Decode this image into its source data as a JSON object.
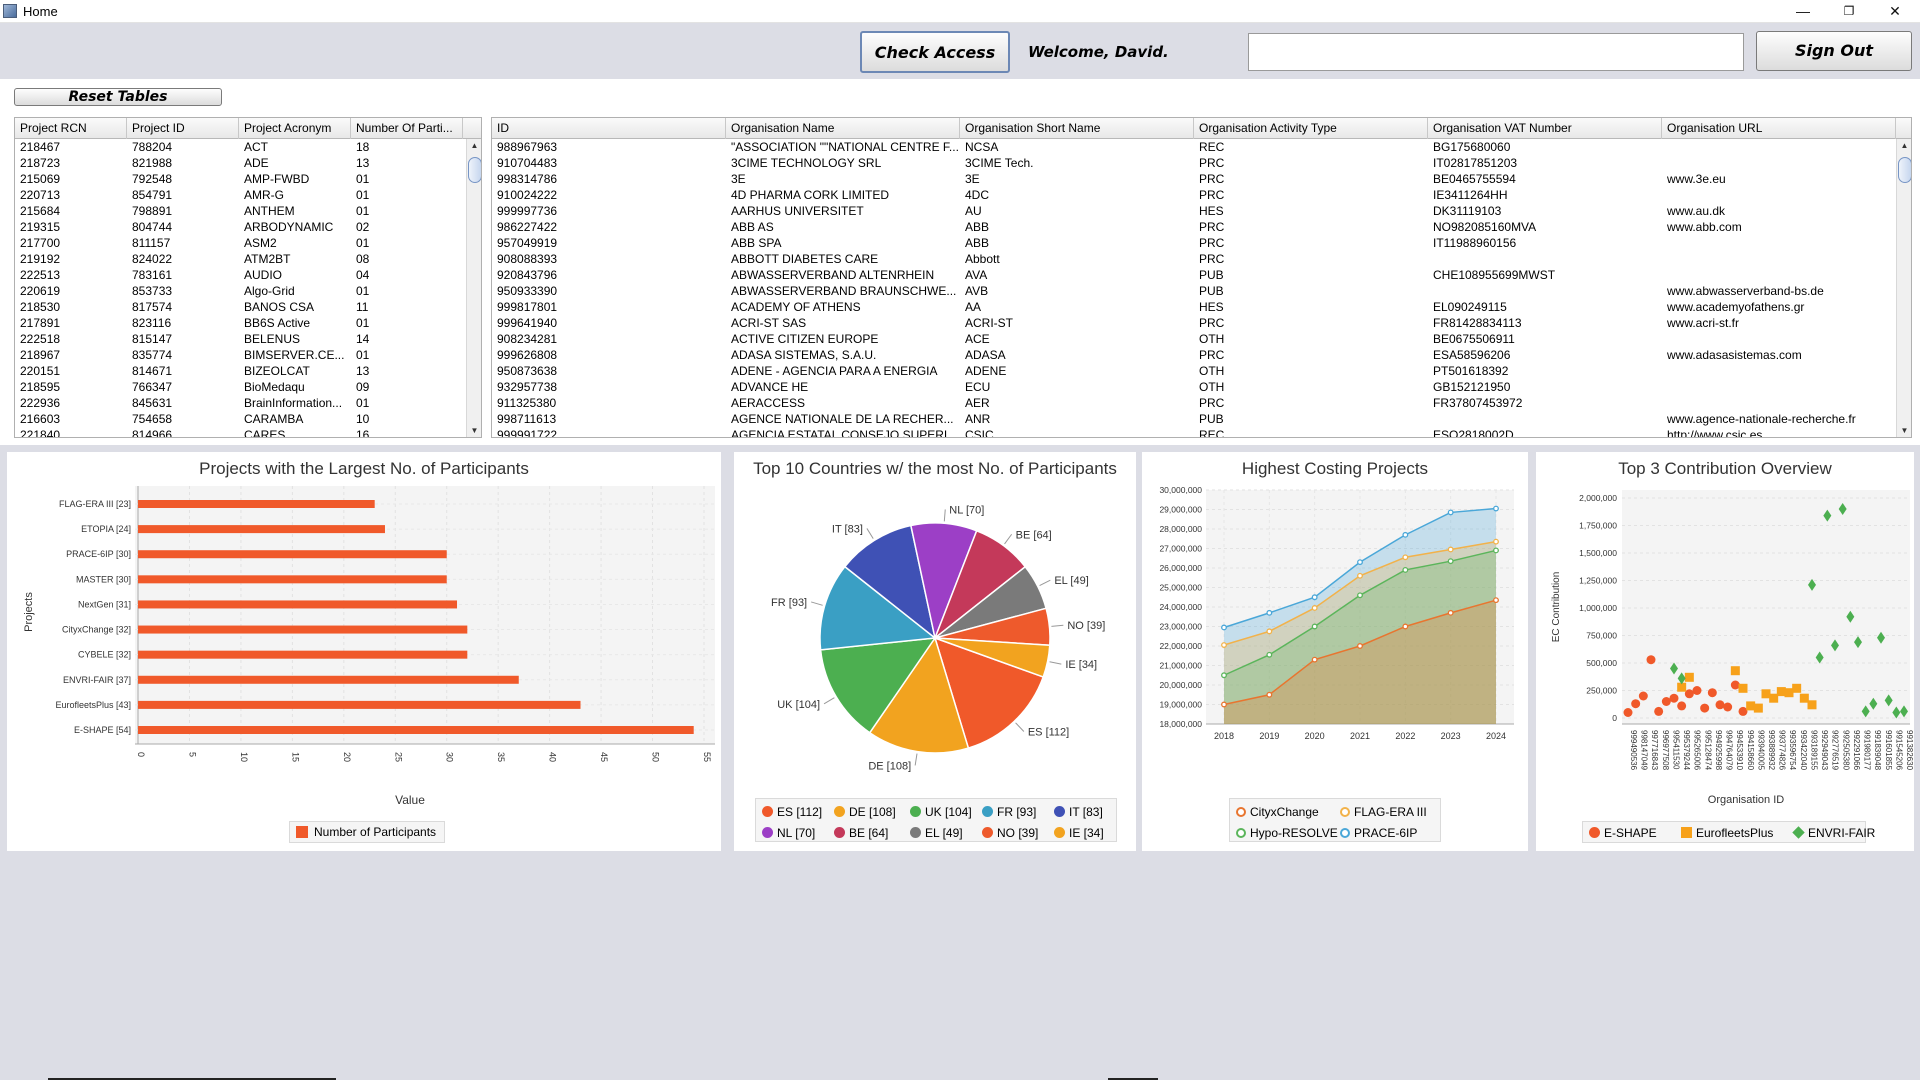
{
  "window": {
    "title": "Home",
    "minimize": "—",
    "restore": "❐",
    "close": "✕"
  },
  "toolbar": {
    "check_access": "Check Access",
    "welcome": "Welcome, David.",
    "search_value": "",
    "sign_out": "Sign Out"
  },
  "reset_tables": "Reset Tables",
  "projects_table": {
    "columns": [
      "Project RCN",
      "Project ID",
      "Project Acronym",
      "Number Of Parti..."
    ],
    "rows": [
      [
        "218467",
        "788204",
        "ACT",
        "18"
      ],
      [
        "218723",
        "821988",
        "ADE",
        "13"
      ],
      [
        "215069",
        "792548",
        "AMP-FWBD",
        "01"
      ],
      [
        "220713",
        "854791",
        "AMR-G",
        "01"
      ],
      [
        "215684",
        "798891",
        "ANTHEM",
        "01"
      ],
      [
        "219315",
        "804744",
        "ARBODYNAMIC",
        "02"
      ],
      [
        "217700",
        "811157",
        "ASM2",
        "01"
      ],
      [
        "219192",
        "824022",
        "ATM2BT",
        "08"
      ],
      [
        "222513",
        "783161",
        "AUDIO",
        "04"
      ],
      [
        "220619",
        "853733",
        "Algo-Grid",
        "01"
      ],
      [
        "218530",
        "817574",
        "BANOS CSA",
        "11"
      ],
      [
        "217891",
        "823116",
        "BB6S Active",
        "01"
      ],
      [
        "222518",
        "815147",
        "BELENUS",
        "14"
      ],
      [
        "218967",
        "835774",
        "BIMSERVER.CE...",
        "01"
      ],
      [
        "220151",
        "814671",
        "BIZEOLCAT",
        "13"
      ],
      [
        "218595",
        "766347",
        "BioMedaqu",
        "09"
      ],
      [
        "222936",
        "845631",
        "BrainInformation...",
        "01"
      ],
      [
        "216603",
        "754658",
        "CARAMBA",
        "10"
      ],
      [
        "221840",
        "814966",
        "CARES",
        "16"
      ]
    ]
  },
  "org_table": {
    "columns": [
      "ID",
      "Organisation Name",
      "Organisation Short Name",
      "Organisation Activity Type",
      "Organisation VAT Number",
      "Organisation URL"
    ],
    "rows": [
      [
        "988967963",
        "\"ASSOCIATION \"\"NATIONAL CENTRE F...",
        "NCSA",
        "REC",
        "BG175680060",
        ""
      ],
      [
        "910704483",
        "3CIME TECHNOLOGY SRL",
        "3CIME Tech.",
        "PRC",
        "IT02817851203",
        ""
      ],
      [
        "998314786",
        "3E",
        "3E",
        "PRC",
        "BE0465755594",
        "www.3e.eu"
      ],
      [
        "910024222",
        "4D PHARMA CORK LIMITED",
        "4DC",
        "PRC",
        "IE3411264HH",
        ""
      ],
      [
        "999997736",
        "AARHUS UNIVERSITET",
        "AU",
        "HES",
        "DK31119103",
        "www.au.dk"
      ],
      [
        "986227422",
        "ABB AS",
        "ABB",
        "PRC",
        "NO982085160MVA",
        "www.abb.com"
      ],
      [
        "957049919",
        "ABB SPA",
        "ABB",
        "PRC",
        "IT11988960156",
        ""
      ],
      [
        "908088393",
        "ABBOTT DIABETES CARE",
        "Abbott",
        "PRC",
        "",
        ""
      ],
      [
        "920843796",
        "ABWASSERVERBAND ALTENRHEIN",
        "AVA",
        "PUB",
        "CHE108955699MWST",
        ""
      ],
      [
        "950933390",
        "ABWASSERVERBAND BRAUNSCHWE...",
        "AVB",
        "PUB",
        "",
        "www.abwasserverband-bs.de"
      ],
      [
        "999817801",
        "ACADEMY OF ATHENS",
        "AA",
        "HES",
        "EL090249115",
        "www.academyofathens.gr"
      ],
      [
        "999641940",
        "ACRI-ST SAS",
        "ACRI-ST",
        "PRC",
        "FR81428834113",
        "www.acri-st.fr"
      ],
      [
        "908234281",
        "ACTIVE CITIZEN EUROPE",
        "ACE",
        "OTH",
        "BE0675506911",
        ""
      ],
      [
        "999626808",
        "ADASA SISTEMAS, S.A.U.",
        "ADASA",
        "PRC",
        "ESA58596206",
        "www.adasasistemas.com"
      ],
      [
        "950873638",
        "ADENE - AGENCIA PARA A ENERGIA",
        "ADENE",
        "OTH",
        "PT501618392",
        ""
      ],
      [
        "932957738",
        "ADVANCE HE",
        "ECU",
        "OTH",
        "GB152121950",
        ""
      ],
      [
        "911325380",
        "AERACCESS",
        "AER",
        "PRC",
        "FR37807453972",
        ""
      ],
      [
        "998711613",
        "AGENCE NATIONALE DE LA RECHER...",
        "ANR",
        "PUB",
        "",
        "www.agence-nationale-recherche.fr"
      ],
      [
        "999991722",
        "AGENCIA ESTATAL CONSEJO SUPERI...",
        "CSIC",
        "REC",
        "ESQ2818002D",
        "http://www.csic.es"
      ]
    ]
  },
  "charts": {
    "bar": {
      "title": "Projects with the Largest No. of Participants",
      "xlabel": "Value",
      "ylabel": "Projects",
      "legend": "Number of Participants",
      "color": "#f0592a",
      "xticks": [
        "0",
        "5",
        "10",
        "15",
        "20",
        "25",
        "30",
        "35",
        "40",
        "45",
        "50",
        "55"
      ]
    },
    "pie": {
      "title": "Top 10 Countries w/ the most No. of Participants",
      "labels": [
        "ES [112]",
        "DE [108]",
        "UK [104]",
        "FR [93]",
        "IT [83]",
        "NL [70]",
        "BE [64]",
        "EL [49]",
        "NO [39]",
        "IE [34]"
      ],
      "colors": [
        "#f0592a",
        "#f2a31f",
        "#4caf50",
        "#3a9fc4",
        "#3f51b5",
        "#9c3fc6",
        "#c4395a",
        "#7a7a7a",
        "#ee5a2c",
        "#f2a31f"
      ]
    },
    "area": {
      "title": "Highest Costing Projects",
      "yticks": [
        "30,000,000",
        "29,000,000",
        "28,000,000",
        "27,000,000",
        "26,000,000",
        "25,000,000",
        "24,000,000",
        "23,000,000",
        "22,000,000",
        "21,000,000",
        "20,000,000",
        "19,000,000",
        "18,000,000"
      ],
      "legend": [
        "CityxChange",
        "FLAG-ERA III",
        "Hypo-RESOLVE",
        "PRACE-6IP"
      ],
      "colors": [
        "#e8752f",
        "#f2b24a",
        "#5bb55b",
        "#4aa7d8"
      ]
    },
    "scatter": {
      "title": "Top 3 Contribution Overview",
      "xlabel": "Organisation ID",
      "ylabel": "EC Contribution",
      "yticks": [
        "2,000,000",
        "1,750,000",
        "1,500,000",
        "1,250,000",
        "1,000,000",
        "750,000",
        "500,000",
        "250,000",
        "0"
      ],
      "xticks": [
        "999490536",
        "998147049",
        "997716843",
        "996977508",
        "995411530",
        "995379244",
        "995265006",
        "995128474",
        "994925998",
        "994764079",
        "994533910",
        "994158660",
        "993940005",
        "993889932",
        "993774826",
        "993596754",
        "993422040",
        "993189155",
        "992949043",
        "992776519",
        "992505380",
        "992291066",
        "991980177",
        "991839048",
        "991601855",
        "991545206",
        "991382630"
      ],
      "legend": [
        "E-SHAPE",
        "EurofleetsPlus",
        "ENVRI-FAIR"
      ],
      "colors": [
        "#f0592a",
        "#f7a11a",
        "#4caf50"
      ]
    }
  },
  "chart_data": [
    {
      "type": "bar",
      "title": "Projects with the Largest No. of Participants",
      "xlabel": "Value",
      "ylabel": "Projects",
      "categories": [
        "FLAG-ERA III [23]",
        "ETOPIA [24]",
        "PRACE-6IP [30]",
        "MASTER [30]",
        "NextGen [31]",
        "CityxChange [32]",
        "CYBELE [32]",
        "ENVRI-FAIR [37]",
        "EurofleetsPlus [43]",
        "E-SHAPE [54]"
      ],
      "values": [
        23,
        24,
        30,
        30,
        31,
        32,
        32,
        37,
        43,
        54
      ],
      "series": [
        {
          "name": "Number of Participants",
          "values": [
            23,
            24,
            30,
            30,
            31,
            32,
            32,
            37,
            43,
            54
          ]
        }
      ],
      "xlim": [
        0,
        55
      ]
    },
    {
      "type": "pie",
      "title": "Top 10 Countries w/ the most No. of Participants",
      "categories": [
        "ES",
        "DE",
        "UK",
        "FR",
        "IT",
        "NL",
        "BE",
        "EL",
        "NO",
        "IE"
      ],
      "values": [
        112,
        108,
        104,
        93,
        83,
        70,
        64,
        49,
        39,
        34
      ]
    },
    {
      "type": "area",
      "title": "Highest Costing Projects",
      "x": [
        2018,
        2019,
        2020,
        2021,
        2022,
        2023,
        2024
      ],
      "series": [
        {
          "name": "PRACE-6IP",
          "values": [
            22950000,
            23700000,
            24500000,
            26300000,
            27700000,
            28850000,
            29050000
          ]
        },
        {
          "name": "FLAG-ERA III",
          "values": [
            22050000,
            22750000,
            23950000,
            25600000,
            26550000,
            26950000,
            27350000
          ]
        },
        {
          "name": "Hypo-RESOLVE",
          "values": [
            20500000,
            21550000,
            23000000,
            24600000,
            25900000,
            26350000,
            26900000
          ]
        },
        {
          "name": "CityxChange",
          "values": [
            19000000,
            19500000,
            21300000,
            22000000,
            23000000,
            23700000,
            24350000
          ]
        }
      ],
      "ylim": [
        18000000,
        30000000
      ]
    },
    {
      "type": "scatter",
      "title": "Top 3 Contribution Overview",
      "xlabel": "Organisation ID",
      "ylabel": "EC Contribution",
      "ylim": [
        0,
        2000000
      ],
      "series": [
        {
          "name": "E-SHAPE",
          "points": [
            [
              0,
              50000
            ],
            [
              1,
              130000
            ],
            [
              2,
              200000
            ],
            [
              3,
              530000
            ],
            [
              4,
              60000
            ],
            [
              5,
              150000
            ],
            [
              6,
              180000
            ],
            [
              7,
              110000
            ],
            [
              8,
              220000
            ],
            [
              9,
              250000
            ],
            [
              10,
              90000
            ],
            [
              11,
              230000
            ],
            [
              12,
              120000
            ],
            [
              13,
              100000
            ],
            [
              14,
              300000
            ],
            [
              15,
              60000
            ]
          ]
        },
        {
          "name": "EurofleetsPlus",
          "points": [
            [
              7,
              280000
            ],
            [
              8,
              370000
            ],
            [
              14,
              430000
            ],
            [
              15,
              270000
            ],
            [
              16,
              110000
            ],
            [
              17,
              90000
            ],
            [
              18,
              220000
            ],
            [
              19,
              180000
            ],
            [
              20,
              240000
            ],
            [
              21,
              230000
            ],
            [
              22,
              270000
            ],
            [
              23,
              180000
            ],
            [
              24,
              120000
            ]
          ]
        },
        {
          "name": "ENVRI-FAIR",
          "points": [
            [
              6,
              450000
            ],
            [
              7,
              360000
            ],
            [
              24,
              1210000
            ],
            [
              25,
              550000
            ],
            [
              26,
              1840000
            ],
            [
              27,
              660000
            ],
            [
              28,
              1900000
            ],
            [
              29,
              920000
            ],
            [
              30,
              690000
            ],
            [
              31,
              60000
            ],
            [
              32,
              130000
            ],
            [
              33,
              730000
            ],
            [
              34,
              160000
            ],
            [
              35,
              50000
            ],
            [
              36,
              60000
            ]
          ]
        }
      ]
    }
  ]
}
